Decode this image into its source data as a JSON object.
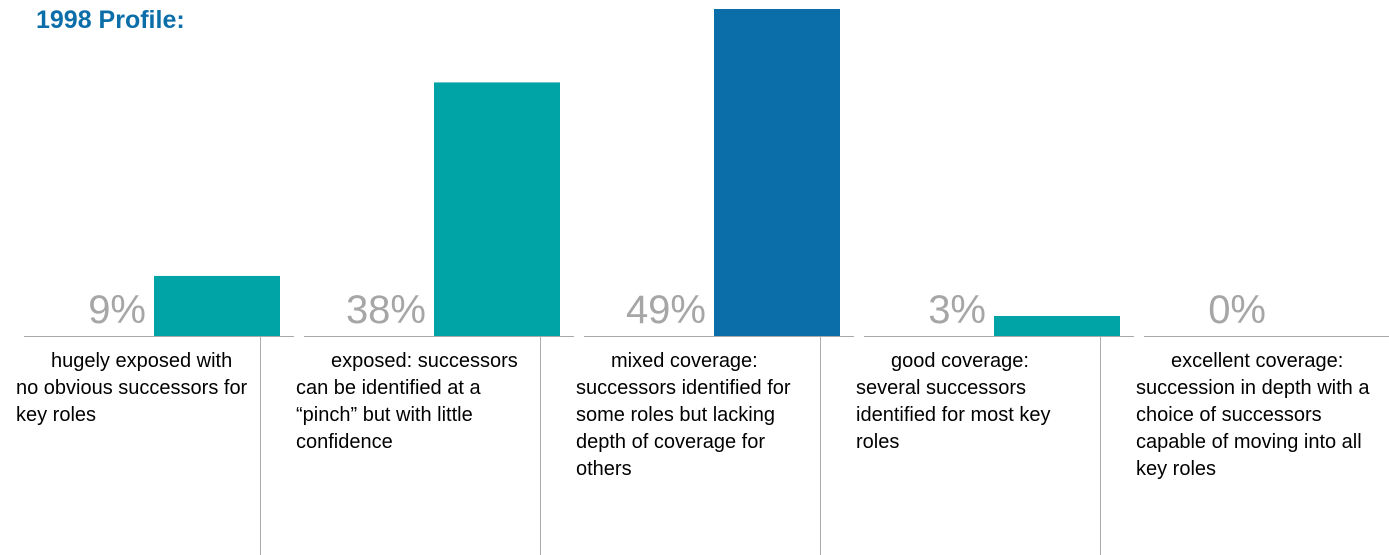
{
  "title": "1998 Profile:",
  "colors": {
    "teal": "#00a3a6",
    "blue": "#0b6ea8",
    "label_gray": "#a6a6a6",
    "divider_gray": "#aaaaaa"
  },
  "chart_data": {
    "type": "bar",
    "title": "1998 Profile:",
    "categories": [
      "hugely exposed with no obvious successors for key roles",
      "exposed: successors can be identified at a “pinch” but with little confidence",
      "mixed coverage: successors identified for some roles but lacking depth of coverage for others",
      "good coverage: several successors identified for most key roles",
      "excellent coverage: succession in depth with a choice of successors capable of moving into all key roles"
    ],
    "values": [
      9,
      38,
      49,
      3,
      0
    ],
    "value_labels": [
      "9%",
      "38%",
      "49%",
      "3%",
      "0%"
    ],
    "bar_colors": [
      "#00a3a6",
      "#00a3a6",
      "#0b6ea8",
      "#00a3a6",
      "#00a3a6"
    ],
    "ylim": [
      0,
      49
    ],
    "xlabel": "",
    "ylabel": "",
    "grid": false,
    "legend": "none"
  }
}
